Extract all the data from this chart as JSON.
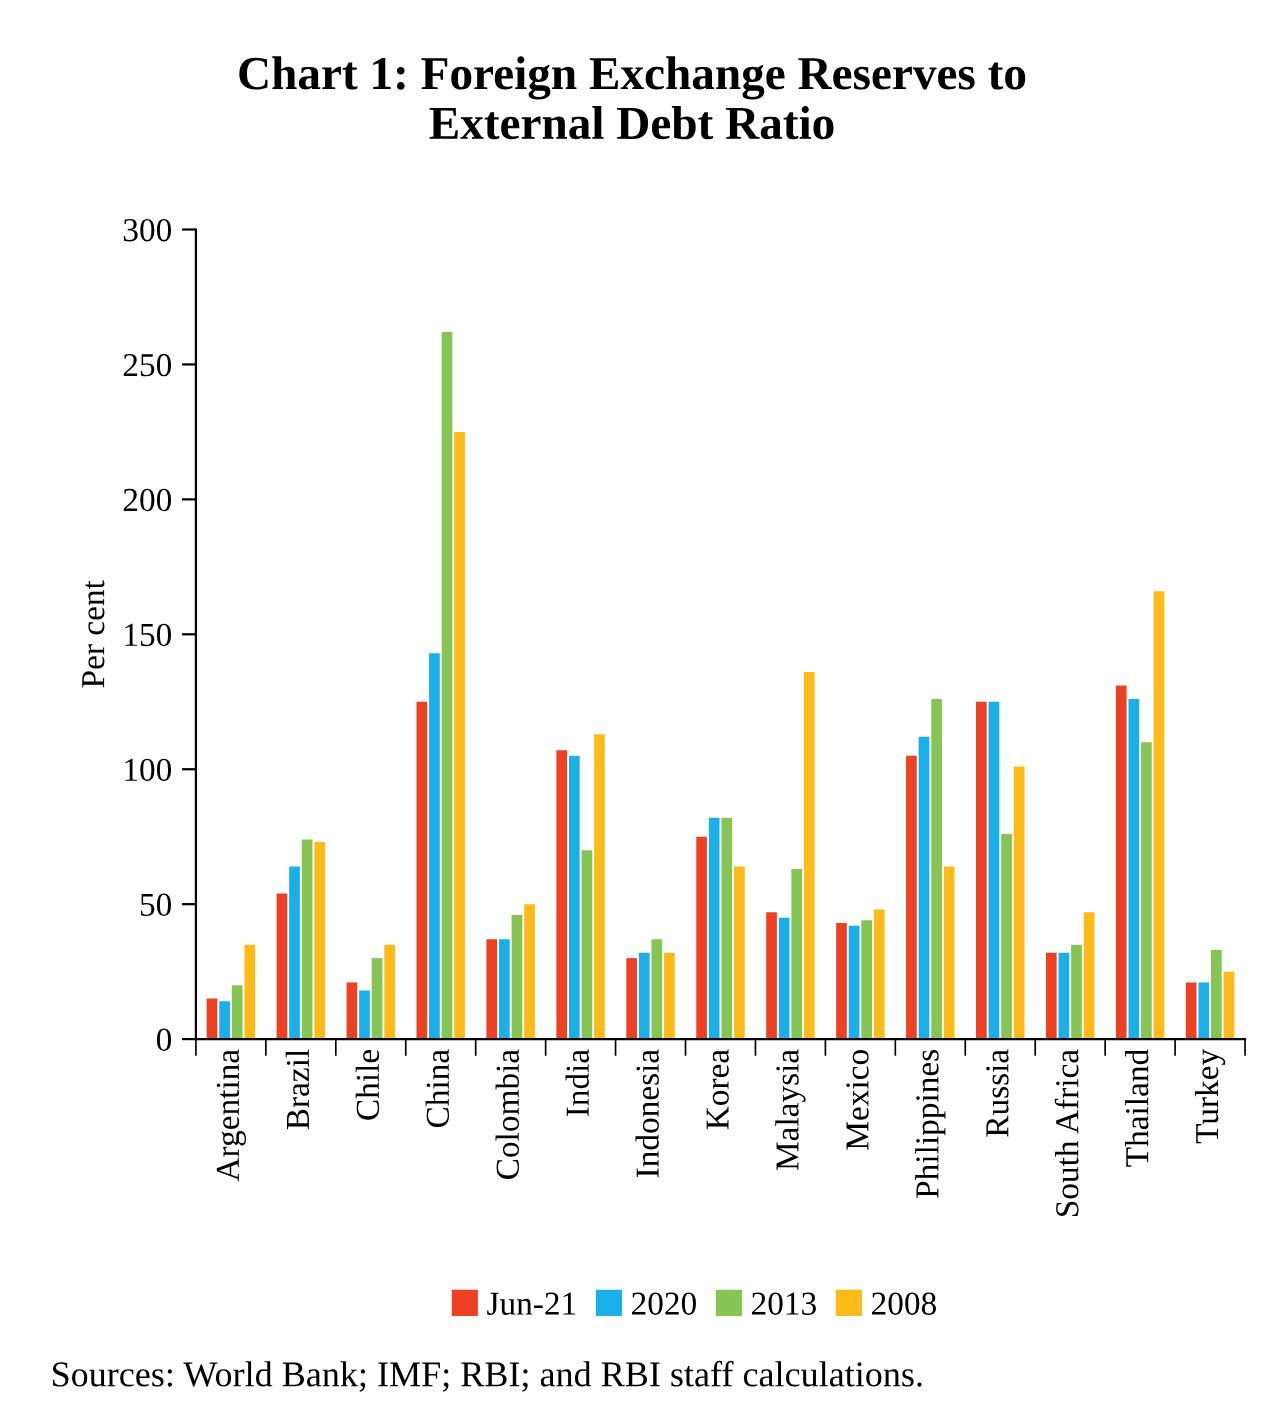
{
  "chart_data": {
    "type": "bar",
    "title": "Chart 1: Foreign Exchange Reserves to\nExternal Debt Ratio",
    "ylabel": "Per cent",
    "categories": [
      "Argentina",
      "Brazil",
      "Chile",
      "China",
      "Colombia",
      "India",
      "Indonesia",
      "Korea",
      "Malaysia",
      "Mexico",
      "Philippines",
      "Russia",
      "South Africa",
      "Thailand",
      "Turkey"
    ],
    "series": [
      {
        "name": "Jun-21",
        "color": "#ee4123",
        "values": [
          15,
          54,
          21,
          125,
          37,
          107,
          30,
          75,
          47,
          43,
          105,
          125,
          32,
          131,
          21
        ]
      },
      {
        "name": "2020",
        "color": "#1aafe6",
        "values": [
          14,
          64,
          18,
          143,
          37,
          105,
          32,
          82,
          45,
          42,
          112,
          125,
          32,
          126,
          21
        ]
      },
      {
        "name": "2013",
        "color": "#86c454",
        "values": [
          20,
          74,
          30,
          262,
          46,
          70,
          37,
          82,
          63,
          44,
          126,
          76,
          35,
          110,
          33
        ]
      },
      {
        "name": "2008",
        "color": "#fdbb1a",
        "values": [
          35,
          73,
          35,
          225,
          50,
          113,
          32,
          64,
          136,
          48,
          64,
          101,
          47,
          166,
          25
        ]
      }
    ],
    "ylim": [
      0,
      300
    ],
    "yticks": [
      0,
      50,
      100,
      150,
      200,
      250,
      300
    ],
    "grid": false,
    "legend": "bottom",
    "annotations": [
      "Sources: World Bank; IMF; RBI; and RBI staff calculations."
    ]
  }
}
